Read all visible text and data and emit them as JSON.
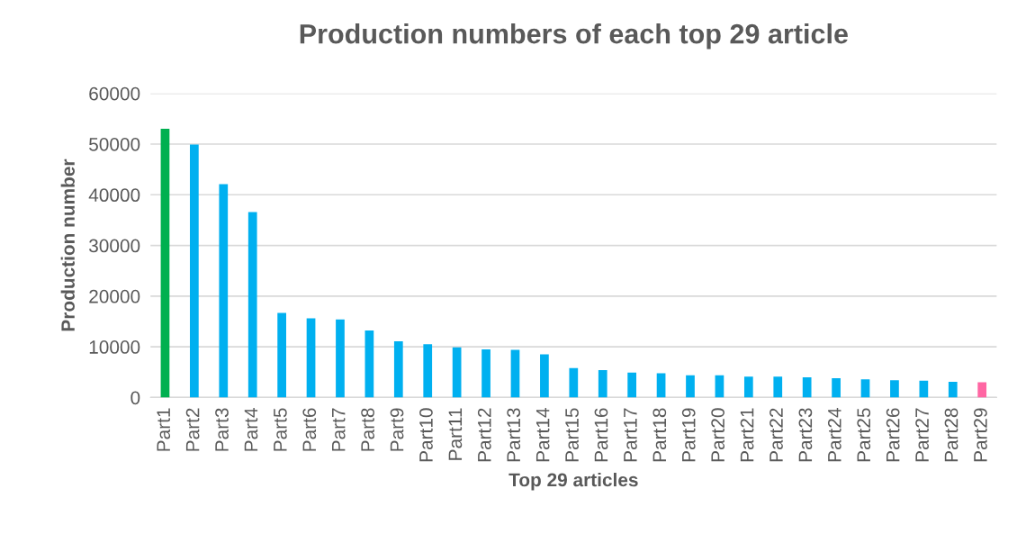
{
  "chart_data": {
    "type": "bar",
    "title": "Production numbers of each top 29 article",
    "xlabel": "Top 29 articles",
    "ylabel": "Production number",
    "categories": [
      "Part1",
      "Part2",
      "Part3",
      "Part4",
      "Part5",
      "Part6",
      "Part7",
      "Part8",
      "Part9",
      "Part10",
      "Part11",
      "Part12",
      "Part13",
      "Part14",
      "Part15",
      "Part16",
      "Part17",
      "Part18",
      "Part19",
      "Part20",
      "Part21",
      "Part22",
      "Part23",
      "Part24",
      "Part25",
      "Part26",
      "Part27",
      "Part28",
      "Part29"
    ],
    "values": [
      53000,
      49900,
      42100,
      36600,
      16700,
      15600,
      15400,
      13200,
      11100,
      10500,
      9900,
      9500,
      9400,
      8500,
      5800,
      5400,
      4900,
      4800,
      4400,
      4400,
      4100,
      4100,
      4000,
      3800,
      3600,
      3400,
      3300,
      3100,
      3000
    ],
    "colors": [
      "#00b050",
      "#00b0f0",
      "#00b0f0",
      "#00b0f0",
      "#00b0f0",
      "#00b0f0",
      "#00b0f0",
      "#00b0f0",
      "#00b0f0",
      "#00b0f0",
      "#00b0f0",
      "#00b0f0",
      "#00b0f0",
      "#00b0f0",
      "#00b0f0",
      "#00b0f0",
      "#00b0f0",
      "#00b0f0",
      "#00b0f0",
      "#00b0f0",
      "#00b0f0",
      "#00b0f0",
      "#00b0f0",
      "#00b0f0",
      "#00b0f0",
      "#00b0f0",
      "#00b0f0",
      "#00b0f0",
      "#ff66a3"
    ],
    "ylim": [
      0,
      60000
    ],
    "yticks": [
      0,
      10000,
      20000,
      30000,
      40000,
      50000,
      60000
    ],
    "grid": "y",
    "legend": false
  }
}
